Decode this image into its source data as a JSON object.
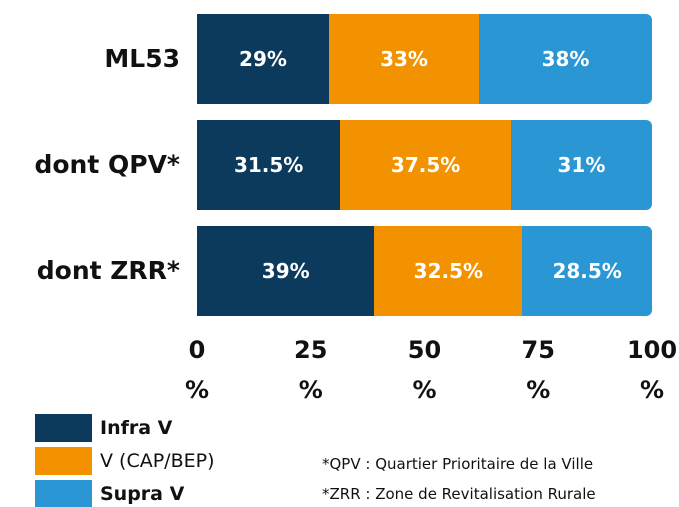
{
  "chart_data": {
    "type": "stacked_barh",
    "categories": [
      "ML53",
      "dont QPV*",
      "dont ZRR*"
    ],
    "series": [
      {
        "name": "Infra V",
        "color": "#0b3a5c",
        "values": [
          29,
          31.5,
          39
        ],
        "value_labels": [
          "29%",
          "31.5%",
          "39%"
        ]
      },
      {
        "name": "V (CAP/BEP)",
        "color": "#f39200",
        "values": [
          33,
          37.5,
          32.5
        ],
        "value_labels": [
          "33%",
          "37.5%",
          "32.5%"
        ]
      },
      {
        "name": "Supra V",
        "color": "#2a96d4",
        "values": [
          38,
          31,
          28.5
        ],
        "value_labels": [
          "38%",
          "31%",
          "28.5%"
        ]
      }
    ],
    "xlim": [
      0,
      100
    ],
    "xticks": [
      {
        "value": 0,
        "label": "0 %"
      },
      {
        "value": 25,
        "label": "25 %"
      },
      {
        "value": 50,
        "label": "50 %"
      },
      {
        "value": 75,
        "label": "75 %"
      },
      {
        "value": 100,
        "label": "100 %"
      }
    ],
    "annotations": [
      "*QPV : Quartier Prioritaire de la Ville",
      "*ZRR : Zone de Revitalisation Rurale"
    ]
  }
}
